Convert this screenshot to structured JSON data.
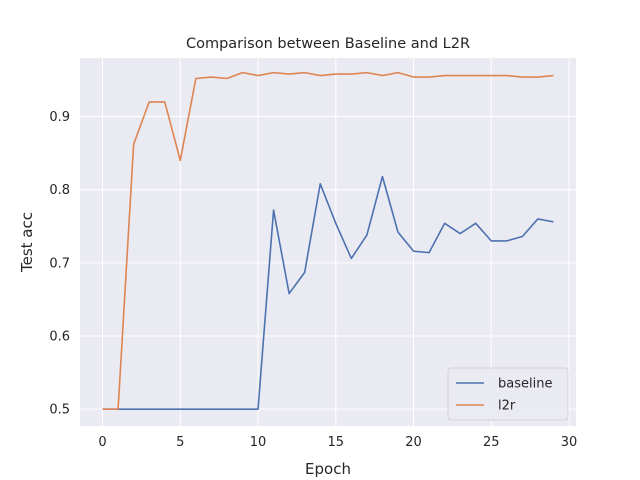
{
  "chart_data": {
    "type": "line",
    "title": "Comparison between Baseline and L2R",
    "xlabel": "Epoch",
    "ylabel": "Test acc",
    "xlim": [
      -1.45,
      30.45
    ],
    "ylim": [
      0.477,
      0.98
    ],
    "xticks": [
      0,
      5,
      10,
      15,
      20,
      25,
      30
    ],
    "yticks": [
      0.5,
      0.6,
      0.7,
      0.8,
      0.9
    ],
    "grid": true,
    "legend_position": "lower-right",
    "x": [
      0,
      1,
      2,
      3,
      4,
      5,
      6,
      7,
      8,
      9,
      10,
      11,
      12,
      13,
      14,
      15,
      16,
      17,
      18,
      19,
      20,
      21,
      22,
      23,
      24,
      25,
      26,
      27,
      28,
      29
    ],
    "series": [
      {
        "name": "baseline",
        "color": "#4c72b0",
        "values": [
          0.5,
          0.5,
          0.5,
          0.5,
          0.5,
          0.5,
          0.5,
          0.5,
          0.5,
          0.5,
          0.5,
          0.772,
          0.658,
          0.687,
          0.808,
          0.754,
          0.706,
          0.738,
          0.818,
          0.742,
          0.716,
          0.714,
          0.754,
          0.74,
          0.754,
          0.73,
          0.73,
          0.736,
          0.76,
          0.756
        ]
      },
      {
        "name": "l2r",
        "color": "#dd8452",
        "values": [
          0.5,
          0.5,
          0.862,
          0.92,
          0.92,
          0.84,
          0.952,
          0.954,
          0.952,
          0.96,
          0.956,
          0.96,
          0.958,
          0.96,
          0.956,
          0.958,
          0.958,
          0.96,
          0.956,
          0.96,
          0.954,
          0.954,
          0.956,
          0.956,
          0.956,
          0.956,
          0.956,
          0.954,
          0.954,
          0.956
        ]
      }
    ]
  }
}
